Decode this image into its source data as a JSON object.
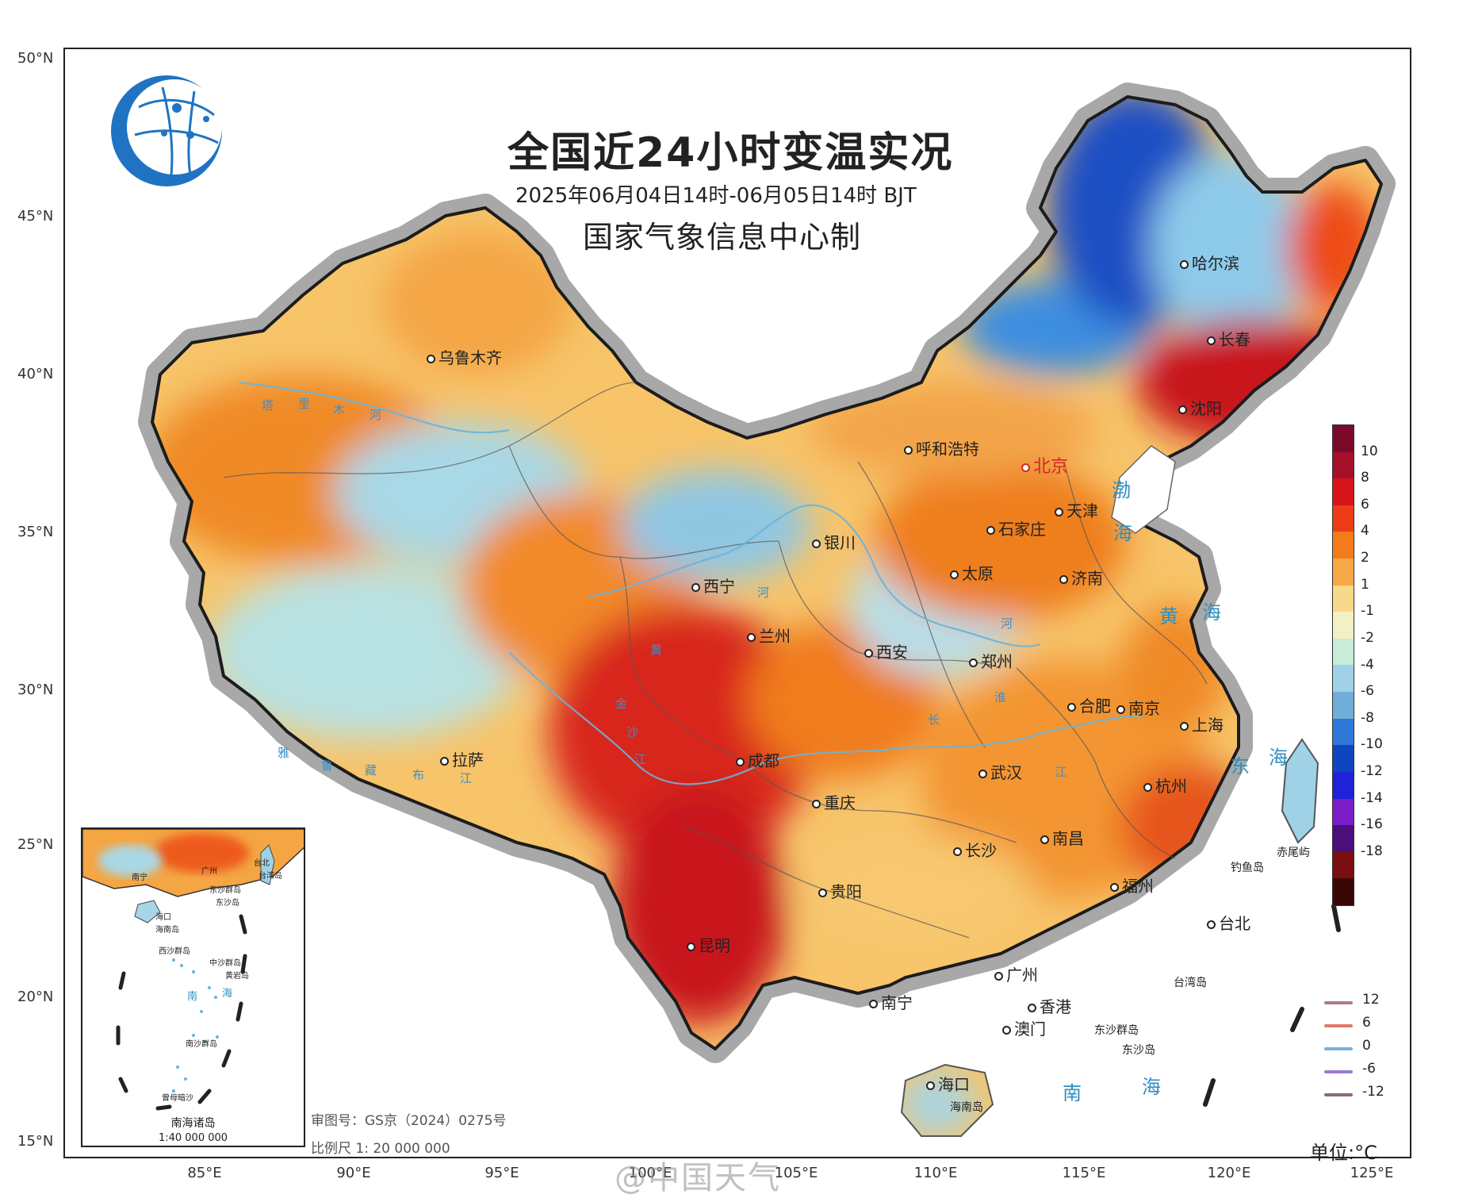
{
  "title": "全国近24小时变温实况",
  "subtitle": "2025年06月04日14时-06月05日14时 BJT",
  "producer": "国家气象信息中心制",
  "latitude_labels": [
    "50°N",
    "45°N",
    "40°N",
    "35°N",
    "30°N",
    "25°N",
    "20°N",
    "15°N"
  ],
  "longitude_labels": [
    "85°E",
    "90°E",
    "95°E",
    "100°E",
    "105°E",
    "110°E",
    "115°E",
    "120°E",
    "125°E"
  ],
  "cities": [
    {
      "name": "乌鲁木齐"
    },
    {
      "name": "哈尔滨"
    },
    {
      "name": "长春"
    },
    {
      "name": "沈阳"
    },
    {
      "name": "呼和浩特"
    },
    {
      "name": "北京"
    },
    {
      "name": "天津"
    },
    {
      "name": "石家庄"
    },
    {
      "name": "银川"
    },
    {
      "name": "太原"
    },
    {
      "name": "济南"
    },
    {
      "name": "西宁"
    },
    {
      "name": "兰州"
    },
    {
      "name": "西安"
    },
    {
      "name": "郑州"
    },
    {
      "name": "合肥"
    },
    {
      "name": "南京"
    },
    {
      "name": "上海"
    },
    {
      "name": "拉萨"
    },
    {
      "name": "成都"
    },
    {
      "name": "武汉"
    },
    {
      "name": "杭州"
    },
    {
      "name": "重庆"
    },
    {
      "name": "长沙"
    },
    {
      "name": "南昌"
    },
    {
      "name": "福州"
    },
    {
      "name": "贵阳"
    },
    {
      "name": "昆明"
    },
    {
      "name": "台北"
    },
    {
      "name": "广州"
    },
    {
      "name": "南宁"
    },
    {
      "name": "香港"
    },
    {
      "name": "澳门"
    },
    {
      "name": "海口"
    }
  ],
  "seas": [
    "渤",
    "海",
    "黄",
    "海",
    "东",
    "海",
    "南",
    "海"
  ],
  "rivers": [
    "塔",
    "里",
    "木",
    "河",
    "黄",
    "河",
    "淮",
    "河",
    "金",
    "沙",
    "江",
    "长",
    "江",
    "雅",
    "鲁",
    "藏",
    "布",
    "江"
  ],
  "islands": [
    "钓鱼岛",
    "赤尾屿",
    "台湾岛",
    "东沙群岛",
    "东沙岛",
    "海南岛"
  ],
  "colorbar": {
    "ticks": [
      "10",
      "8",
      "6",
      "4",
      "2",
      "1",
      "-1",
      "-2",
      "-4",
      "-6",
      "-8",
      "-10",
      "-12",
      "-14",
      "-16",
      "-18"
    ],
    "colors": [
      "#7a0a2a",
      "#a5102a",
      "#d8141b",
      "#ee3c16",
      "#f47b1c",
      "#f7a847",
      "#f8d98c",
      "#f3f0c4",
      "#c7ecd8",
      "#9fd2e6",
      "#6eaed8",
      "#2f78d9",
      "#0f45bf",
      "#1e22d8",
      "#7b1ec8",
      "#4a0f7a",
      "#7a0f10",
      "#3a0606"
    ]
  },
  "line_legend": [
    {
      "label": "12",
      "color": "#b07a84"
    },
    {
      "label": "6",
      "color": "#e07a6a"
    },
    {
      "label": "0",
      "color": "#7ab0dc"
    },
    {
      "label": "-6",
      "color": "#9a7ad0"
    },
    {
      "label": "-12",
      "color": "#8a6a7a"
    }
  ],
  "unit": "单位:°C",
  "inset": {
    "caption": "南海诸岛",
    "scale": "1:40 000 000",
    "labels": [
      "南宁",
      "广州",
      "东沙群岛",
      "台湾岛",
      "海口",
      "海南岛",
      "西沙群岛",
      "中沙群岛",
      "黄岩岛",
      "南",
      "海",
      "南沙群岛",
      "曾母暗沙",
      "东沙岛",
      "台北"
    ]
  },
  "approval": "审图号：GS京（2024）0275号",
  "scale": "比例尺 1: 20 000 000",
  "watermark": "@中国天气"
}
